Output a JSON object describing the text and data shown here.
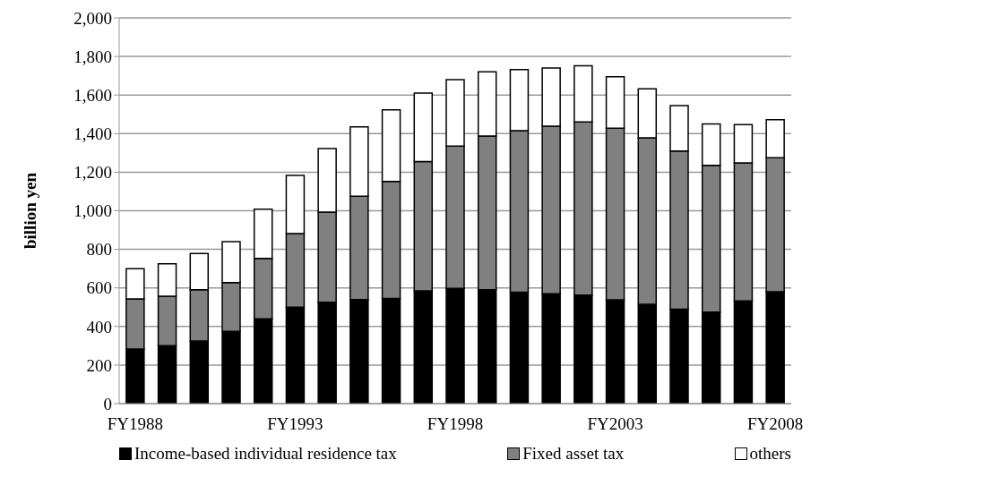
{
  "chart_data": {
    "type": "bar",
    "ylabel": "billion yen",
    "stacked": true,
    "categories": [
      "FY1988",
      null,
      null,
      null,
      null,
      "FY1993",
      null,
      null,
      null,
      null,
      "FY1998",
      null,
      null,
      null,
      null,
      "FY2003",
      null,
      null,
      null,
      null,
      "FY2008"
    ],
    "series": [
      {
        "name": "Income-based individual residence tax",
        "color": "#000000",
        "values": [
          283,
          300,
          325,
          375,
          440,
          500,
          525,
          540,
          545,
          585,
          597,
          590,
          578,
          570,
          563,
          538,
          515,
          490,
          475,
          533,
          580
        ]
      },
      {
        "name": "Fixed asset tax",
        "color": "#808080",
        "values": [
          260,
          257,
          265,
          253,
          313,
          382,
          468,
          535,
          607,
          670,
          738,
          798,
          837,
          868,
          897,
          890,
          863,
          820,
          760,
          715,
          695
        ]
      },
      {
        "name": "others",
        "color": "#ffffff",
        "values": [
          157,
          168,
          188,
          212,
          255,
          301,
          329,
          360,
          371,
          355,
          345,
          332,
          317,
          302,
          292,
          267,
          254,
          235,
          215,
          199,
          197
        ]
      }
    ],
    "ylim": [
      0,
      2000
    ],
    "yticks": [
      0,
      200,
      400,
      600,
      800,
      {
        "value": 1000,
        "label": "1,000"
      },
      {
        "value": 1200,
        "label": "1,200"
      },
      {
        "value": 1400,
        "label": "1,400"
      },
      {
        "value": 1600,
        "label": "1,600"
      },
      {
        "value": 1800,
        "label": "1,800"
      },
      {
        "value": 2000,
        "label": "2,000"
      }
    ],
    "grid": "y",
    "legend": "bottom"
  }
}
